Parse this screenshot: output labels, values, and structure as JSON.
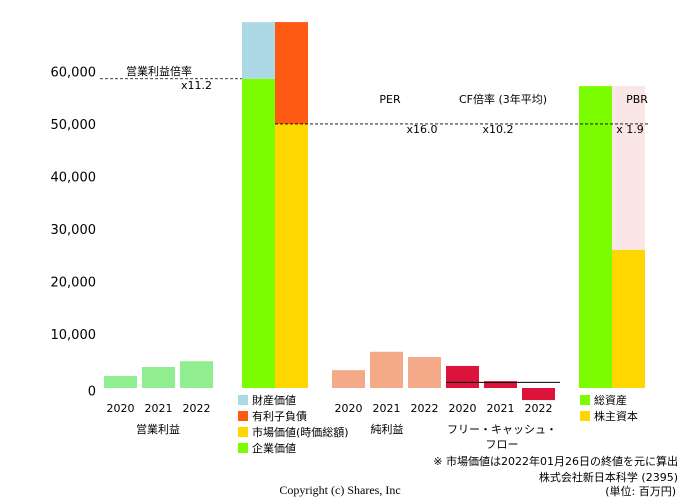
{
  "chart_data": {
    "type": "bar",
    "ylim": [
      0,
      70000
    ],
    "yticks": [
      0,
      {
        "value": 10000,
        "label": "10,000"
      },
      {
        "value": 20000,
        "label": "20,000"
      },
      {
        "value": 30000,
        "label": "30,000"
      },
      {
        "value": 40000,
        "label": "40,000"
      },
      {
        "value": 50000,
        "label": "50,000"
      },
      {
        "value": 60000,
        "label": "60,000"
      }
    ],
    "groups": [
      {
        "type": "bar",
        "name": "営業利益",
        "color": "#90ee90",
        "categories": [
          "2020",
          "2021",
          "2022"
        ],
        "values": [
          2300,
          4000,
          5100
        ]
      },
      {
        "type": "stacked",
        "stacks": [
          [
            {
              "name": "企業価値",
              "color": "#7cfc00",
              "value": 58900
            },
            {
              "name": "財産価値",
              "color": "#add8e6",
              "value": 10800
            }
          ],
          [
            {
              "name": "市場価値(時価総額)",
              "color": "#ffd700",
              "value": 50300
            },
            {
              "name": "有利子負債",
              "color": "#ff5a14",
              "value": 19400
            }
          ]
        ]
      },
      {
        "type": "bar",
        "name": "純利益",
        "color": "#f4a988",
        "categories": [
          "2020",
          "2021",
          "2022"
        ],
        "values": [
          3400,
          6900,
          5900
        ]
      },
      {
        "type": "bar",
        "name": "フリー・キャッシュ・フロー",
        "color": "#dc143c",
        "categories": [
          "2020",
          "2021",
          "2022"
        ],
        "values": [
          4200,
          1300,
          -2300
        ],
        "average": 1067
      },
      {
        "type": "stacked",
        "shade": "#fae6e6",
        "stacks": [
          [
            {
              "name": "総資産",
              "color": "#7cfc00",
              "value": 57500
            }
          ],
          [
            {
              "name": "株主資本",
              "color": "#ffd700",
              "value": 26300
            }
          ]
        ]
      }
    ],
    "multiples": [
      {
        "name": "営業利益倍率",
        "value": 11.2,
        "value_label": "x11.2"
      },
      {
        "name": "PER",
        "value": 16.0,
        "value_label": "x16.0"
      },
      {
        "name": "CF倍率 (3年平均)",
        "value": 10.2,
        "value_label": "x10.2"
      },
      {
        "name": "PBR",
        "value": 1.9,
        "value_label": "x 1.9"
      }
    ],
    "note": "※ 市場価値は2022年01月26日の終値を元に算出",
    "company": "株式会社新日本科学 (2395)",
    "unit": "(単位: 百万円)",
    "copyright": "Copyright (c) Shares, Inc"
  }
}
